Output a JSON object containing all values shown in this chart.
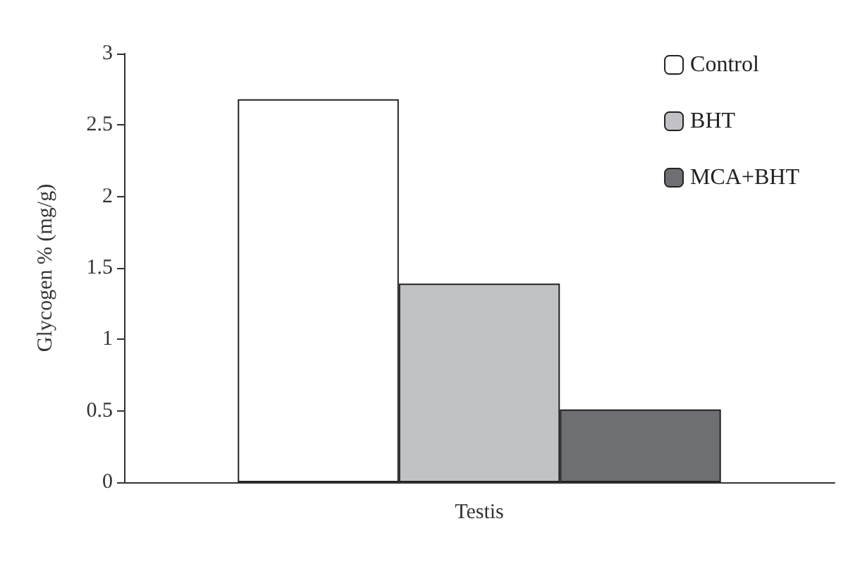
{
  "chart_data": {
    "type": "bar",
    "ylabel": "Glycogen % (mg/g)",
    "categories": [
      "Testis"
    ],
    "series": [
      {
        "name": "Control",
        "color": "#ffffff",
        "values": [
          2.68
        ]
      },
      {
        "name": "BHT",
        "color": "#c1c2c5",
        "values": [
          1.39
        ]
      },
      {
        "name": "MCA+BHT",
        "color": "#6e6f73",
        "values": [
          0.51
        ]
      }
    ],
    "ylim": [
      0,
      3
    ],
    "yticks": [
      0,
      0.5,
      1,
      1.5,
      2,
      2.5,
      3
    ],
    "grid": false,
    "legend": "top right"
  }
}
